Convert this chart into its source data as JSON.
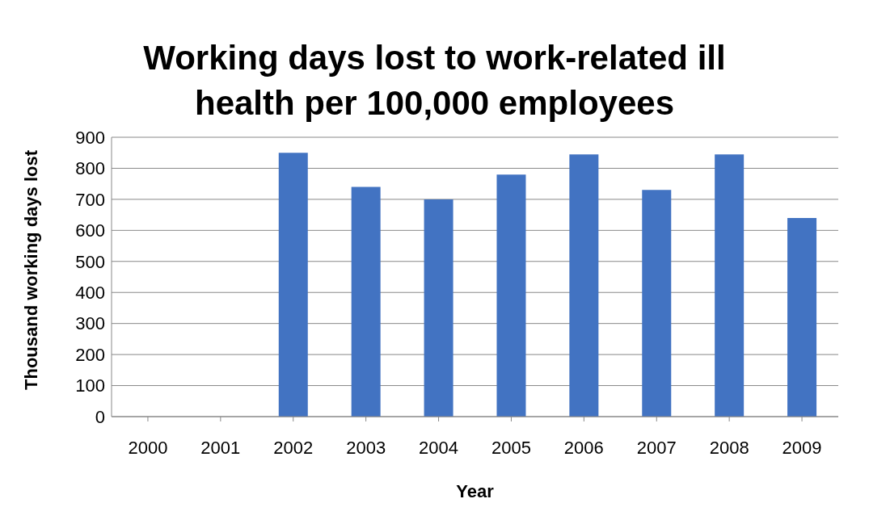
{
  "chart_data": {
    "type": "bar",
    "title": "Working days lost to work-related ill health per 100,000 employees",
    "xlabel": "Year",
    "ylabel": "Thousand working days lost",
    "categories": [
      "2000",
      "2001",
      "2002",
      "2003",
      "2004",
      "2005",
      "2006",
      "2007",
      "2008",
      "2009"
    ],
    "values": [
      null,
      null,
      850,
      740,
      700,
      780,
      845,
      730,
      845,
      640
    ],
    "color": "#4273c2",
    "ylim": [
      0,
      900
    ],
    "yticks": [
      0,
      100,
      200,
      300,
      400,
      500,
      600,
      700,
      800,
      900
    ],
    "grid": "y"
  }
}
